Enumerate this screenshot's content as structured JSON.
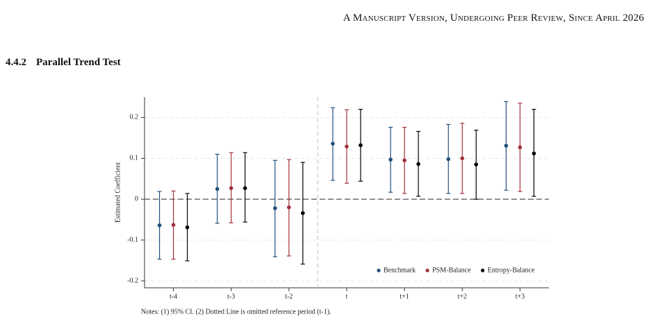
{
  "header": {
    "running_title": "A Manuscript Version, Undergoing Peer Review, Since April 2026"
  },
  "section": {
    "number": "4.4.2",
    "title": "Parallel Trend Test"
  },
  "chart_data": {
    "type": "errorbar",
    "ylabel": "Estimated Coefficient",
    "categories": [
      "t-4",
      "t-3",
      "t-2",
      "t",
      "t+1",
      "t+2",
      "t+3"
    ],
    "ylim": [
      -0.217,
      0.25
    ],
    "yticks": [
      -0.2,
      -0.1,
      0,
      0.1,
      0.2
    ],
    "grid": true,
    "legend": "lower right",
    "series": [
      {
        "name": "Benchmark",
        "color": "#1f4e79",
        "values": [
          -0.064,
          0.025,
          -0.022,
          0.136,
          0.097,
          0.098,
          0.131
        ],
        "lower": [
          -0.147,
          -0.059,
          -0.141,
          0.046,
          0.017,
          0.014,
          0.022
        ],
        "upper": [
          0.019,
          0.11,
          0.095,
          0.224,
          0.176,
          0.183,
          0.239
        ]
      },
      {
        "name": "PSM-Balance",
        "color": "#a0303a",
        "values": [
          -0.063,
          0.027,
          -0.02,
          0.129,
          0.095,
          0.1,
          0.127
        ],
        "lower": [
          -0.147,
          -0.058,
          -0.139,
          0.039,
          0.014,
          0.014,
          0.019
        ],
        "upper": [
          0.02,
          0.114,
          0.097,
          0.219,
          0.176,
          0.186,
          0.235
        ]
      },
      {
        "name": "Entropy-Balance",
        "color": "#000000",
        "values": [
          -0.069,
          0.027,
          -0.034,
          0.132,
          0.086,
          0.085,
          0.112
        ],
        "lower": [
          -0.151,
          -0.056,
          -0.159,
          0.044,
          0.007,
          0.0,
          0.007
        ],
        "upper": [
          0.014,
          0.114,
          0.09,
          0.22,
          0.166,
          0.169,
          0.22
        ]
      }
    ],
    "note": "Notes: (1) 95% CI. (2) Dotted Line is omitted reference period (t-1)."
  }
}
